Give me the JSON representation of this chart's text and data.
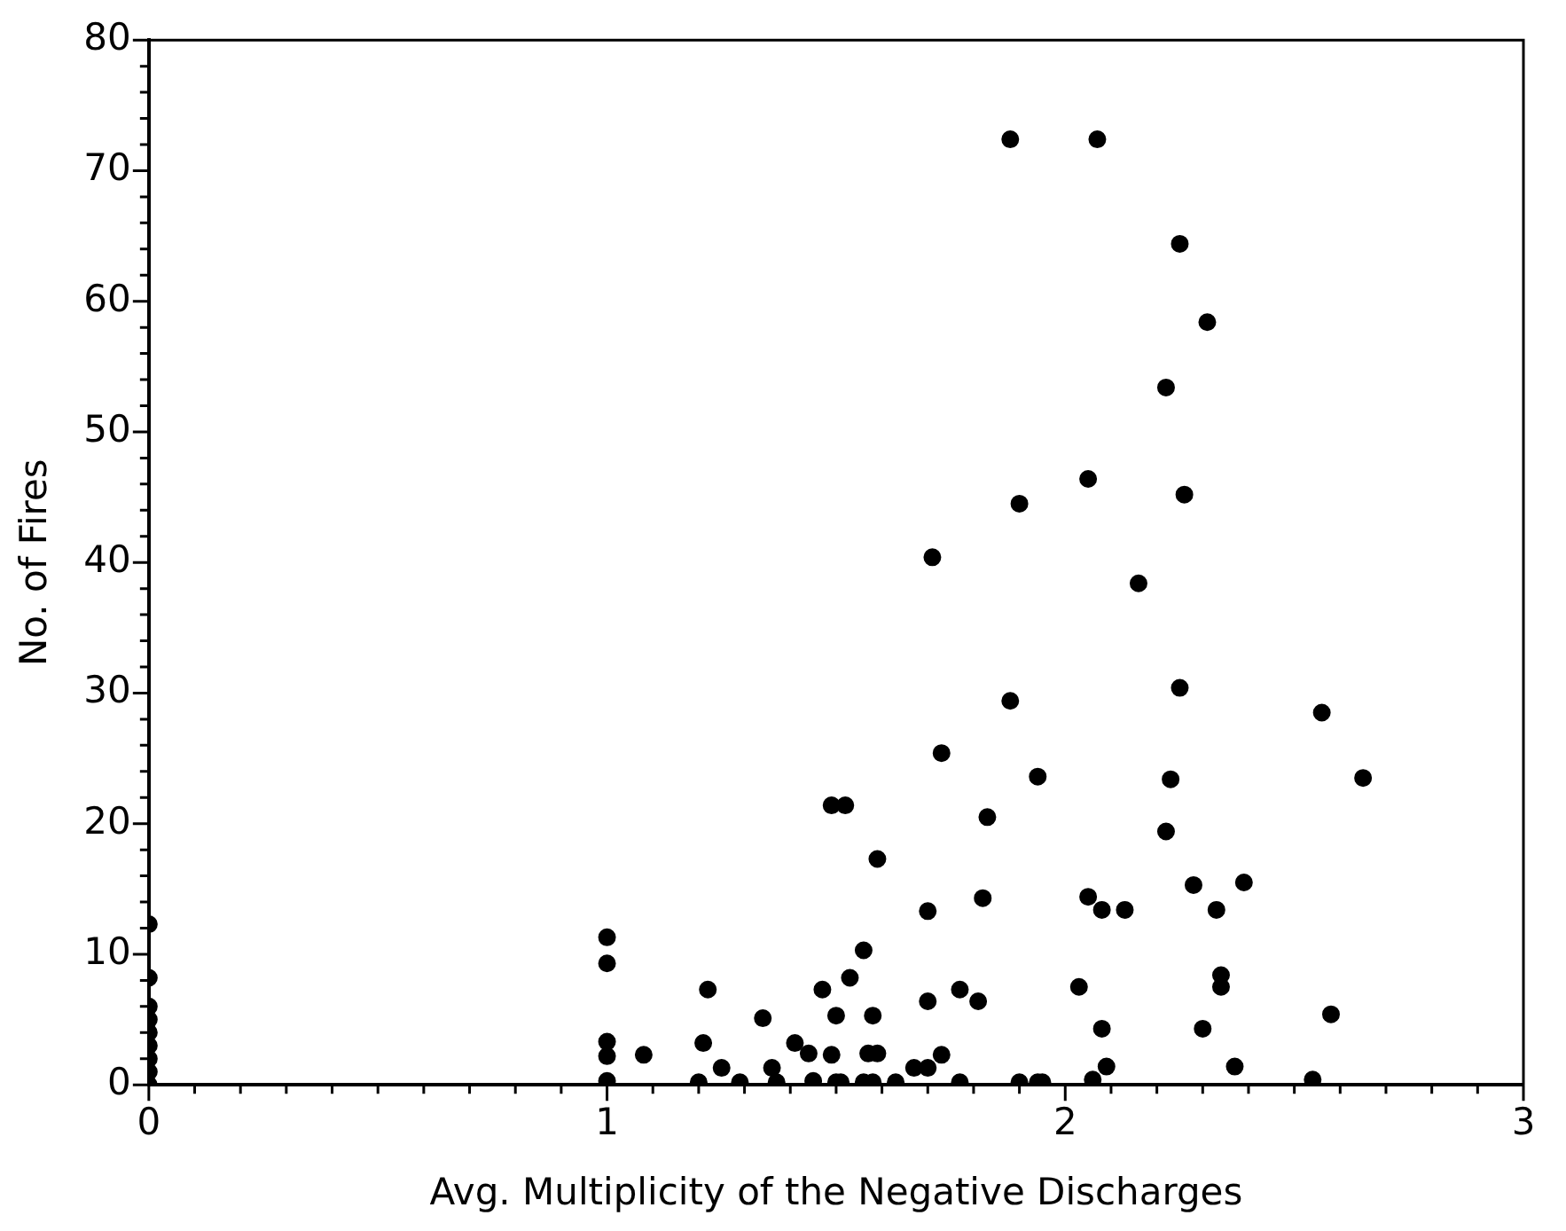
{
  "chart_data": {
    "type": "scatter",
    "xlabel": "Avg. Multiplicity of the Negative Discharges",
    "ylabel": "No. of Fires",
    "marker": "circle",
    "grid": false,
    "legend": false,
    "xlim": [
      0,
      3
    ],
    "ylim": [
      0,
      80
    ],
    "xticks": [
      0,
      {
        "value": 0.1,
        "label": null
      },
      {
        "value": 0.2,
        "label": null
      },
      {
        "value": 0.3,
        "label": null
      },
      {
        "value": 0.4,
        "label": null
      },
      {
        "value": 0.5,
        "label": null
      },
      {
        "value": 0.6,
        "label": null
      },
      {
        "value": 0.7,
        "label": null
      },
      {
        "value": 0.8,
        "label": null
      },
      {
        "value": 0.9,
        "label": null
      },
      1,
      {
        "value": 1.1,
        "label": null
      },
      {
        "value": 1.2,
        "label": null
      },
      {
        "value": 1.3,
        "label": null
      },
      {
        "value": 1.4,
        "label": null
      },
      {
        "value": 1.5,
        "label": null
      },
      {
        "value": 1.6,
        "label": null
      },
      {
        "value": 1.7,
        "label": null
      },
      {
        "value": 1.8,
        "label": null
      },
      {
        "value": 1.9,
        "label": null
      },
      2,
      {
        "value": 2.1,
        "label": null
      },
      {
        "value": 2.2,
        "label": null
      },
      {
        "value": 2.3,
        "label": null
      },
      {
        "value": 2.4,
        "label": null
      },
      {
        "value": 2.5,
        "label": null
      },
      {
        "value": 2.6,
        "label": null
      },
      {
        "value": 2.7,
        "label": null
      },
      {
        "value": 2.8,
        "label": null
      },
      {
        "value": 2.9,
        "label": null
      },
      3
    ],
    "yticks": [
      0,
      {
        "value": 2,
        "label": null
      },
      {
        "value": 4,
        "label": null
      },
      {
        "value": 6,
        "label": null
      },
      {
        "value": 8,
        "label": null
      },
      10,
      {
        "value": 12,
        "label": null
      },
      {
        "value": 14,
        "label": null
      },
      {
        "value": 16,
        "label": null
      },
      {
        "value": 18,
        "label": null
      },
      20,
      {
        "value": 22,
        "label": null
      },
      {
        "value": 24,
        "label": null
      },
      {
        "value": 26,
        "label": null
      },
      {
        "value": 28,
        "label": null
      },
      30,
      {
        "value": 32,
        "label": null
      },
      {
        "value": 34,
        "label": null
      },
      {
        "value": 36,
        "label": null
      },
      {
        "value": 38,
        "label": null
      },
      40,
      {
        "value": 42,
        "label": null
      },
      {
        "value": 44,
        "label": null
      },
      {
        "value": 46,
        "label": null
      },
      {
        "value": 48,
        "label": null
      },
      50,
      {
        "value": 52,
        "label": null
      },
      {
        "value": 54,
        "label": null
      },
      {
        "value": 56,
        "label": null
      },
      {
        "value": 58,
        "label": null
      },
      60,
      {
        "value": 62,
        "label": null
      },
      {
        "value": 64,
        "label": null
      },
      {
        "value": 66,
        "label": null
      },
      {
        "value": 68,
        "label": null
      },
      70,
      {
        "value": 72,
        "label": null
      },
      {
        "value": 74,
        "label": null
      },
      {
        "value": 76,
        "label": null
      },
      {
        "value": 78,
        "label": null
      },
      80
    ],
    "series": [
      {
        "color": "#000000",
        "x": [
          0,
          0,
          0,
          0,
          0,
          0,
          0,
          0,
          0,
          1,
          1,
          1,
          1,
          1,
          1.08,
          1.2,
          1.21,
          1.22,
          1.25,
          1.29,
          1.34,
          1.36,
          1.37,
          1.41,
          1.44,
          1.45,
          1.47,
          1.49,
          1.5,
          1.5,
          1.51,
          1.53,
          1.56,
          1.57,
          1.59,
          1.58,
          1.56,
          1.58,
          1.59,
          1.63,
          1.67,
          1.7,
          1.7,
          1.7,
          1.73,
          1.77,
          1.77,
          1.81,
          1.82,
          1.9,
          1.94,
          1.95,
          2.03,
          2.05,
          2.08,
          2.13,
          2.08,
          2.09,
          2.06,
          2.22,
          2.28,
          2.39,
          2.33,
          2.34,
          2.34,
          2.3,
          2.37,
          2.54,
          2.58,
          1.88,
          2.07,
          2.25,
          2.31,
          2.22,
          2.05,
          1.9,
          2.26,
          2.16,
          1.88,
          2.25,
          2.56,
          1.94,
          2.23,
          2.65,
          1.71,
          1.73,
          1.49,
          1.52,
          1.83
        ],
        "values": [
          12.3,
          8.2,
          6,
          5,
          4,
          3,
          2,
          1,
          0,
          11.3,
          9.3,
          3.3,
          2.2,
          0.3,
          2.3,
          0.2,
          3.2,
          7.3,
          1.3,
          0.2,
          5.1,
          1.3,
          0.2,
          3.2,
          2.4,
          0.3,
          7.3,
          2.3,
          5.3,
          0.2,
          0.2,
          8.2,
          10.3,
          2.4,
          2.4,
          5.3,
          0.2,
          0.2,
          17.3,
          0.2,
          1.3,
          6.4,
          13.3,
          1.3,
          2.3,
          7.3,
          0.2,
          6.4,
          14.3,
          0.2,
          0.2,
          0.2,
          7.5,
          14.4,
          13.4,
          13.4,
          4.3,
          1.4,
          0.4,
          19.4,
          15.3,
          15.5,
          13.4,
          8.4,
          7.5,
          4.3,
          1.4,
          0.4,
          5.4,
          72.4,
          72.4,
          64.4,
          58.4,
          53.4,
          46.4,
          44.5,
          45.2,
          38.4,
          29.4,
          30.4,
          28.5,
          23.6,
          23.4,
          23.5,
          40.4,
          25.4,
          21.4,
          21.4,
          20.5
        ]
      }
    ]
  }
}
